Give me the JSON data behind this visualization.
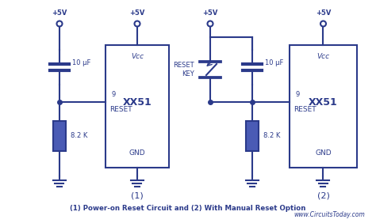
{
  "bg_color": "#ffffff",
  "line_color": "#2b3a8a",
  "fill_color": "#4a5bb5",
  "text_color": "#2b3a8a",
  "title": "(1) Power-on Reset Circuit and (2) With Manual Reset Option",
  "watermark": "www.CircuitsToday.com",
  "circuit1_label": "(1)",
  "circuit2_label": "(2)"
}
